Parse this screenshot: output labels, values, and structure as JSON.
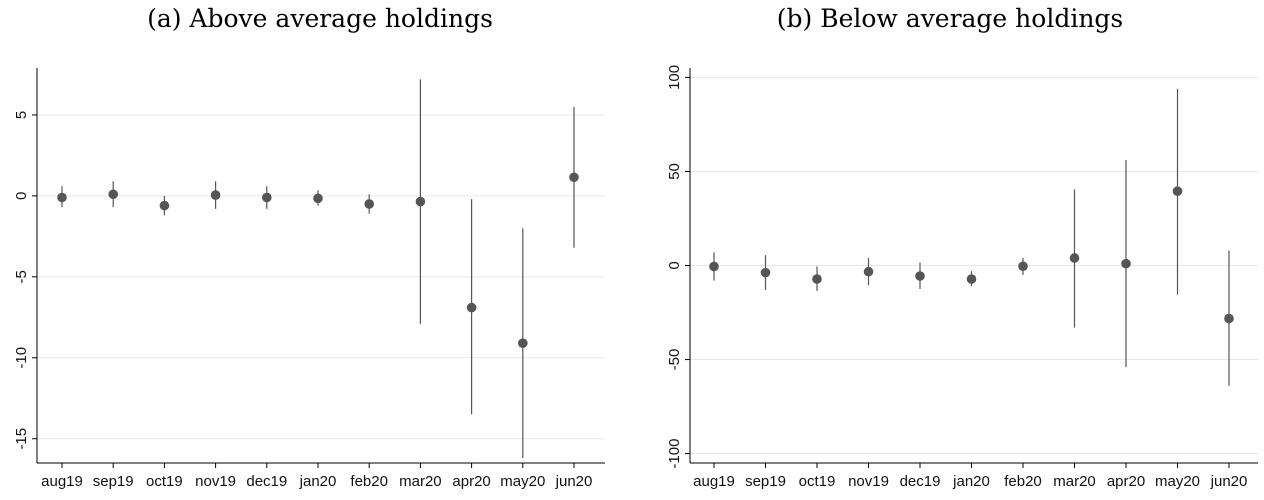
{
  "chart_data": [
    {
      "type": "scatter",
      "title": "(a) Above average holdings",
      "xlabel": "",
      "ylabel": "",
      "categories": [
        "aug19",
        "sep19",
        "oct19",
        "nov19",
        "dec19",
        "jan20",
        "feb20",
        "mar20",
        "apr20",
        "may20",
        "jun20"
      ],
      "series": [
        {
          "values": [
            -0.1,
            0.1,
            -0.6,
            0.05,
            -0.1,
            -0.15,
            -0.5,
            -0.35,
            -6.9,
            -9.1,
            1.15
          ],
          "ci_low": [
            -0.7,
            -0.7,
            -1.2,
            -0.8,
            -0.8,
            -0.6,
            -1.1,
            -7.9,
            -13.5,
            -16.2,
            -3.2
          ],
          "ci_high": [
            0.6,
            0.9,
            0.0,
            0.9,
            0.6,
            0.35,
            0.1,
            7.2,
            -0.2,
            -2.0,
            5.5
          ]
        }
      ],
      "yticks": [
        5,
        0,
        -5,
        -10,
        -15
      ],
      "ylim": [
        -16.5,
        7.9
      ],
      "grid": true,
      "marker_color": "#555555",
      "line_color": "#555555",
      "grid_color": "#e8e8e8"
    },
    {
      "type": "scatter",
      "title": "(b) Below average holdings",
      "xlabel": "",
      "ylabel": "",
      "categories": [
        "aug19",
        "sep19",
        "oct19",
        "nov19",
        "dec19",
        "jan20",
        "feb20",
        "mar20",
        "apr20",
        "may20",
        "jun20"
      ],
      "series": [
        {
          "values": [
            -0.5,
            -3.8,
            -7.2,
            -3.3,
            -5.6,
            -7.2,
            -0.4,
            4.0,
            1.0,
            39.5,
            -28.2
          ],
          "ci_low": [
            -8.0,
            -13.0,
            -13.5,
            -10.5,
            -12.5,
            -11.0,
            -5.0,
            -33.0,
            -54.0,
            -15.5,
            -64.0
          ],
          "ci_high": [
            7.0,
            5.5,
            -0.5,
            4.0,
            1.5,
            -3.0,
            4.0,
            40.5,
            56.0,
            94.0,
            8.0
          ]
        }
      ],
      "yticks": [
        100,
        50,
        0,
        -50,
        -100
      ],
      "ylim": [
        -105,
        105
      ],
      "grid": true,
      "marker_color": "#555555",
      "line_color": "#555555",
      "grid_color": "#e8e8e8"
    }
  ]
}
